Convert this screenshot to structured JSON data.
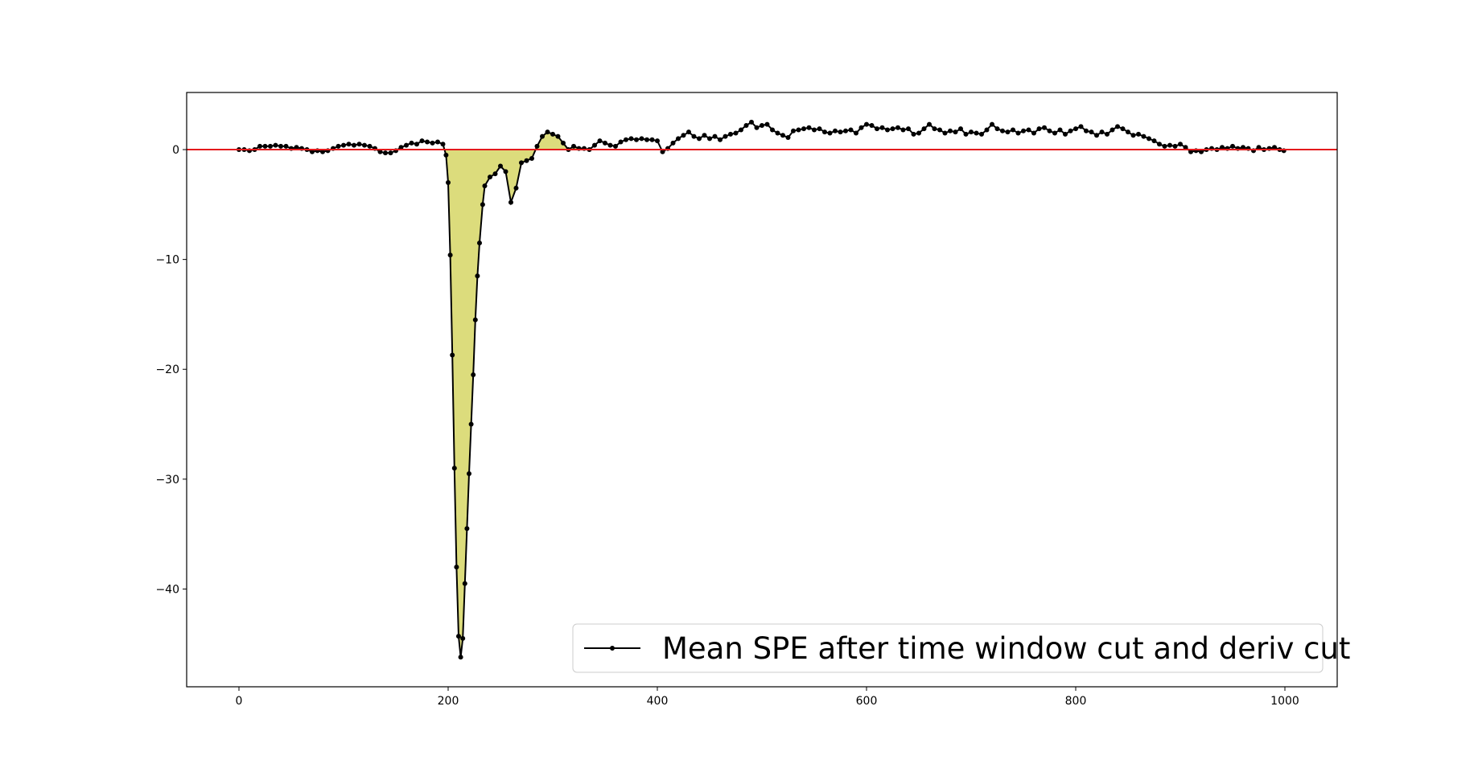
{
  "chart_data": {
    "type": "line",
    "x": [
      0,
      5,
      10,
      15,
      20,
      25,
      30,
      35,
      40,
      45,
      50,
      55,
      60,
      65,
      70,
      75,
      80,
      85,
      90,
      95,
      100,
      105,
      110,
      115,
      120,
      125,
      130,
      135,
      140,
      145,
      150,
      155,
      160,
      165,
      170,
      175,
      180,
      185,
      190,
      195,
      198,
      200,
      202,
      204,
      206,
      208,
      210,
      212,
      214,
      216,
      218,
      220,
      222,
      224,
      226,
      228,
      230,
      233,
      235,
      240,
      245,
      250,
      255,
      260,
      265,
      270,
      275,
      280,
      285,
      290,
      295,
      300,
      305,
      310,
      315,
      320,
      325,
      330,
      335,
      340,
      345,
      350,
      355,
      360,
      365,
      370,
      375,
      380,
      385,
      390,
      395,
      400,
      405,
      410,
      415,
      420,
      425,
      430,
      435,
      440,
      445,
      450,
      455,
      460,
      465,
      470,
      475,
      480,
      485,
      490,
      495,
      500,
      505,
      510,
      515,
      520,
      525,
      530,
      535,
      540,
      545,
      550,
      555,
      560,
      565,
      570,
      575,
      580,
      585,
      590,
      595,
      600,
      605,
      610,
      615,
      620,
      625,
      630,
      635,
      640,
      645,
      650,
      655,
      660,
      665,
      670,
      675,
      680,
      685,
      690,
      695,
      700,
      705,
      710,
      715,
      720,
      725,
      730,
      735,
      740,
      745,
      750,
      755,
      760,
      765,
      770,
      775,
      780,
      785,
      790,
      795,
      800,
      805,
      810,
      815,
      820,
      825,
      830,
      835,
      840,
      845,
      850,
      855,
      860,
      865,
      870,
      875,
      880,
      885,
      890,
      895,
      900,
      905,
      910,
      915,
      920,
      925,
      930,
      935,
      940,
      945,
      950,
      955,
      960,
      965,
      970,
      975,
      980,
      985,
      990,
      995,
      999
    ],
    "series": [
      {
        "name": "Mean SPE after time window cut and deriv cut",
        "color": "#000000",
        "values": [
          0,
          0,
          -0.1,
          0,
          0.3,
          0.3,
          0.3,
          0.4,
          0.3,
          0.3,
          0.1,
          0.2,
          0.1,
          0,
          -0.2,
          -0.1,
          -0.2,
          -0.1,
          0.1,
          0.3,
          0.4,
          0.5,
          0.4,
          0.5,
          0.4,
          0.3,
          0.1,
          -0.2,
          -0.3,
          -0.3,
          -0.1,
          0.2,
          0.4,
          0.6,
          0.5,
          0.8,
          0.7,
          0.6,
          0.7,
          0.5,
          -0.5,
          -3,
          -9.6,
          -18.7,
          -29,
          -38,
          -44.3,
          -46.2,
          -44.5,
          -39.5,
          -34.5,
          -29.5,
          -25,
          -20.5,
          -15.5,
          -11.5,
          -8.5,
          -5,
          -3.3,
          -2.5,
          -2.2,
          -1.5,
          -2,
          -4.8,
          -3.5,
          -1.2,
          -1,
          -0.8,
          0.3,
          1.2,
          1.6,
          1.4,
          1.2,
          0.6,
          0,
          0.3,
          0.1,
          0.1,
          0,
          0.4,
          0.8,
          0.6,
          0.4,
          0.3,
          0.7,
          0.9,
          1,
          0.9,
          1,
          0.9,
          0.9,
          0.8,
          -0.2,
          0.1,
          0.6,
          1,
          1.3,
          1.6,
          1.2,
          1,
          1.3,
          1,
          1.2,
          0.9,
          1.2,
          1.4,
          1.5,
          1.8,
          2.2,
          2.5,
          2,
          2.2,
          2.3,
          1.8,
          1.5,
          1.3,
          1.1,
          1.7,
          1.8,
          1.9,
          2,
          1.8,
          1.9,
          1.6,
          1.5,
          1.7,
          1.6,
          1.7,
          1.8,
          1.5,
          2,
          2.3,
          2.2,
          1.9,
          2,
          1.8,
          1.9,
          2,
          1.8,
          1.9,
          1.4,
          1.5,
          1.9,
          2.3,
          1.9,
          1.8,
          1.5,
          1.7,
          1.6,
          1.9,
          1.4,
          1.6,
          1.5,
          1.4,
          1.8,
          2.3,
          1.9,
          1.7,
          1.6,
          1.8,
          1.5,
          1.7,
          1.8,
          1.5,
          1.9,
          2,
          1.7,
          1.5,
          1.8,
          1.4,
          1.7,
          1.9,
          2.1,
          1.7,
          1.6,
          1.3,
          1.6,
          1.4,
          1.8,
          2.1,
          1.9,
          1.6,
          1.3,
          1.4,
          1.2,
          1,
          0.8,
          0.5,
          0.3,
          0.4,
          0.3,
          0.5,
          0.2,
          -0.2,
          -0.1,
          -0.2,
          0,
          0.1,
          0,
          0.2,
          0.1,
          0.3,
          0.1,
          0.2,
          0.1,
          -0.1,
          0.2,
          0,
          0.1,
          0.2,
          0,
          -0.1
        ]
      }
    ],
    "fill": {
      "from": 195,
      "to": 330,
      "color": "#dcdc7c"
    },
    "hline": {
      "y": 0,
      "color": "#e41a1c"
    },
    "xlim": [
      -50,
      1050
    ],
    "ylim": [
      -48.9,
      5.2
    ],
    "xticks": [
      0,
      200,
      400,
      600,
      800,
      1000
    ],
    "yticks": [
      {
        "value": -40,
        "label": "−40"
      },
      {
        "value": -30,
        "label": "−30"
      },
      {
        "value": -20,
        "label": "−20"
      },
      {
        "value": -10,
        "label": "−10"
      },
      0
    ],
    "legend": "lower right"
  }
}
